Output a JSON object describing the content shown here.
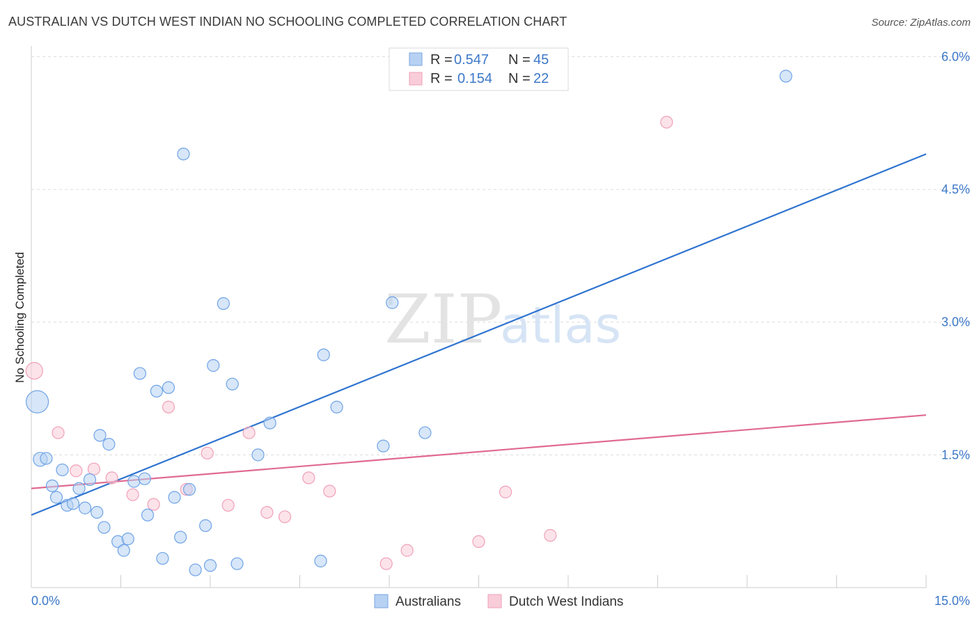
{
  "header": {
    "title": "AUSTRALIAN VS DUTCH WEST INDIAN NO SCHOOLING COMPLETED CORRELATION CHART",
    "source": "Source: ZipAtlas.com"
  },
  "legend": {
    "rows": [
      {
        "r_label": "R =",
        "r_value": "0.547",
        "n_label": "N =",
        "n_value": "45"
      },
      {
        "r_label": "R =",
        "r_value": "0.154",
        "n_label": "N =",
        "n_value": "22"
      }
    ]
  },
  "watermark": {
    "zip": "ZIP",
    "atlas": "atlas"
  },
  "chart_data": {
    "type": "scatter",
    "title": "AUSTRALIAN VS DUTCH WEST INDIAN NO SCHOOLING COMPLETED CORRELATION CHART",
    "xlabel": "",
    "ylabel": "No Schooling Completed",
    "xlim": [
      0,
      15
    ],
    "ylim": [
      0,
      6.2
    ],
    "x_tick_labels": [
      "0.0%",
      "15.0%"
    ],
    "y_ticks": [
      1.5,
      3.0,
      4.5,
      6.0
    ],
    "y_tick_labels": [
      "1.5%",
      "3.0%",
      "4.5%",
      "6.0%"
    ],
    "grid": true,
    "colors": {
      "australians": "#6fa3e6",
      "dutch_west_indians": "#f0a0b8",
      "blue_line": "#2f74d0",
      "pink_line": "#e06a92"
    },
    "series": [
      {
        "name": "Australians",
        "points": [
          [
            0.1,
            2.1
          ],
          [
            0.15,
            1.45
          ],
          [
            0.25,
            1.46
          ],
          [
            0.35,
            1.15
          ],
          [
            0.42,
            1.02
          ],
          [
            0.52,
            1.33
          ],
          [
            0.6,
            0.93
          ],
          [
            0.7,
            0.95
          ],
          [
            0.8,
            1.12
          ],
          [
            0.9,
            0.9
          ],
          [
            0.98,
            1.22
          ],
          [
            1.1,
            0.85
          ],
          [
            1.15,
            1.72
          ],
          [
            1.22,
            0.68
          ],
          [
            1.3,
            1.62
          ],
          [
            1.45,
            0.52
          ],
          [
            1.55,
            0.42
          ],
          [
            1.62,
            0.55
          ],
          [
            1.72,
            1.2
          ],
          [
            1.82,
            2.42
          ],
          [
            1.9,
            1.23
          ],
          [
            1.95,
            0.82
          ],
          [
            2.1,
            2.22
          ],
          [
            2.2,
            0.33
          ],
          [
            2.3,
            2.26
          ],
          [
            2.4,
            1.02
          ],
          [
            2.5,
            0.57
          ],
          [
            2.55,
            4.9
          ],
          [
            2.65,
            1.11
          ],
          [
            2.75,
            0.2
          ],
          [
            2.92,
            0.7
          ],
          [
            3.0,
            0.25
          ],
          [
            3.05,
            2.51
          ],
          [
            3.22,
            3.21
          ],
          [
            3.37,
            2.3
          ],
          [
            3.45,
            0.27
          ],
          [
            3.8,
            1.5
          ],
          [
            4.0,
            1.86
          ],
          [
            4.85,
            0.3
          ],
          [
            4.9,
            2.63
          ],
          [
            5.12,
            2.04
          ],
          [
            5.9,
            1.6
          ],
          [
            6.05,
            3.22
          ],
          [
            6.6,
            1.75
          ],
          [
            12.65,
            5.78
          ]
        ],
        "trend": {
          "x": [
            0,
            15
          ],
          "y": [
            0.82,
            4.9
          ]
        }
      },
      {
        "name": "Dutch West Indians",
        "points": [
          [
            0.05,
            2.45
          ],
          [
            0.45,
            1.75
          ],
          [
            0.75,
            1.32
          ],
          [
            1.05,
            1.34
          ],
          [
            1.35,
            1.24
          ],
          [
            1.7,
            1.05
          ],
          [
            2.05,
            0.94
          ],
          [
            2.3,
            2.04
          ],
          [
            2.6,
            1.11
          ],
          [
            2.95,
            1.52
          ],
          [
            3.3,
            0.93
          ],
          [
            3.65,
            1.75
          ],
          [
            3.95,
            0.85
          ],
          [
            4.25,
            0.8
          ],
          [
            4.65,
            1.24
          ],
          [
            5.0,
            1.09
          ],
          [
            5.95,
            0.27
          ],
          [
            6.3,
            0.42
          ],
          [
            7.5,
            0.52
          ],
          [
            7.95,
            1.08
          ],
          [
            8.7,
            0.59
          ],
          [
            10.65,
            5.26
          ]
        ],
        "trend": {
          "x": [
            0,
            15
          ],
          "y": [
            1.12,
            1.95
          ]
        }
      }
    ]
  }
}
